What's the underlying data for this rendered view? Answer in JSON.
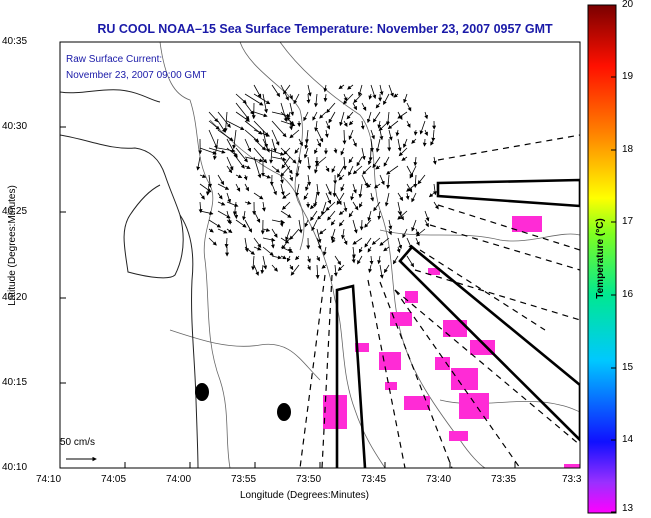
{
  "title": "RU COOL  NOAA–15  Sea Surface Temperature:  November 23, 2007 0957 GMT",
  "current_note_line1": "Raw Surface Current:",
  "current_note_line2": "November 23, 2007 09:00 GMT",
  "scale_label": "50 cm/s",
  "axes": {
    "xlabel": "Longitude (Degrees:Minutes)",
    "ylabel": "Latitude (Degrees:Minutes)",
    "xticks": [
      "74:10",
      "74:05",
      "74:00",
      "73:55",
      "73:50",
      "73:45",
      "73:40",
      "73:35",
      "73:3"
    ],
    "yticks": [
      "40:35",
      "40:30",
      "40:25",
      "40:20",
      "40:15",
      "40:10"
    ]
  },
  "colorbar": {
    "label": "Temperature (°C)",
    "ticks": [
      "20",
      "19",
      "18",
      "17",
      "16",
      "15",
      "14",
      "13"
    ],
    "range": [
      13,
      20
    ]
  },
  "colors": {
    "title": "#1a1aa8",
    "sst_patch": "#ff2bd6",
    "contour": "#555555",
    "coast": "#222222"
  },
  "icons": {
    "scale_arrow": "arrow-right-icon",
    "buoy": "filled-ellipse-icon"
  }
}
